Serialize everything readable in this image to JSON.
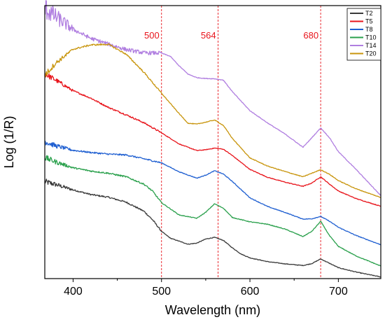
{
  "chart_data": {
    "type": "line",
    "xlabel": "Wavelength (nm)",
    "ylabel": "Log (1/R)",
    "xlim": [
      368,
      748
    ],
    "ylim": [
      0,
      100
    ],
    "x_ticks": [
      "400",
      "500",
      "600",
      "700"
    ],
    "y_ticks_shown": false,
    "grid": false,
    "legend_position": "top-right",
    "reference_lines": [
      {
        "x": 500,
        "label": "500",
        "color": "#e8141b",
        "style": "dashed"
      },
      {
        "x": 564,
        "label": "564",
        "color": "#e8141b",
        "style": "dashed"
      },
      {
        "x": 680,
        "label": "680",
        "color": "#e8141b",
        "style": "dashed"
      }
    ],
    "series": [
      {
        "name": "T2",
        "color": "#3a3a3a",
        "x": [
          368,
          380,
          400,
          420,
          440,
          460,
          480,
          490,
          500,
          510,
          520,
          530,
          540,
          550,
          560,
          570,
          580,
          590,
          600,
          620,
          640,
          660,
          670,
          680,
          690,
          700,
          720,
          748
        ],
        "y": [
          35.5,
          34.5,
          32.5,
          30.8,
          29.8,
          28.0,
          24.7,
          21.5,
          17.3,
          14.8,
          13.7,
          12.6,
          13.0,
          14.5,
          15.1,
          14.0,
          11.3,
          9.0,
          7.6,
          6.2,
          5.4,
          4.8,
          5.5,
          7.2,
          5.6,
          4.0,
          2.4,
          0.6
        ]
      },
      {
        "name": "T5",
        "color": "#e8141b",
        "x": [
          368,
          380,
          400,
          420,
          440,
          460,
          480,
          500,
          520,
          540,
          550,
          560,
          570,
          580,
          600,
          620,
          640,
          660,
          670,
          680,
          690,
          700,
          720,
          748
        ],
        "y": [
          75.0,
          72.8,
          68.8,
          66.1,
          62.7,
          60.0,
          57.1,
          53.4,
          49.3,
          46.9,
          47.2,
          47.8,
          47.4,
          45.1,
          40.0,
          37.1,
          35.3,
          33.8,
          35.0,
          37.3,
          34.6,
          32.1,
          29.3,
          26.5
        ]
      },
      {
        "name": "T8",
        "color": "#1f5fd1",
        "x": [
          368,
          380,
          400,
          420,
          440,
          460,
          480,
          500,
          520,
          540,
          550,
          560,
          570,
          580,
          600,
          620,
          640,
          660,
          670,
          680,
          690,
          700,
          720,
          748
        ],
        "y": [
          50.2,
          48.7,
          47.0,
          46.2,
          45.6,
          45.3,
          43.9,
          42.4,
          39.1,
          36.8,
          37.9,
          39.5,
          38.3,
          35.6,
          29.6,
          26.4,
          24.2,
          21.8,
          21.9,
          22.8,
          21.0,
          18.8,
          15.8,
          12.4
        ]
      },
      {
        "name": "T10",
        "color": "#2aa04c",
        "x": [
          368,
          380,
          400,
          420,
          440,
          460,
          480,
          490,
          500,
          520,
          540,
          550,
          560,
          570,
          580,
          600,
          620,
          640,
          660,
          670,
          680,
          690,
          700,
          720,
          748
        ],
        "y": [
          44.3,
          42.8,
          40.6,
          39.4,
          38.6,
          37.3,
          34.6,
          32.0,
          27.8,
          23.3,
          22.1,
          24.3,
          27.4,
          25.8,
          22.4,
          20.8,
          19.9,
          18.1,
          15.4,
          17.3,
          21.0,
          15.7,
          11.8,
          8.3,
          4.6
        ]
      },
      {
        "name": "T14",
        "color": "#b07ee0",
        "x": [
          368,
          380,
          400,
          420,
          440,
          460,
          480,
          500,
          510,
          520,
          530,
          540,
          550,
          560,
          570,
          580,
          600,
          620,
          640,
          660,
          670,
          680,
          690,
          700,
          720,
          748
        ],
        "y": [
          99.0,
          96.0,
          91.3,
          88.0,
          85.9,
          83.9,
          82.7,
          82.6,
          81.4,
          77.9,
          74.9,
          73.6,
          73.3,
          73.2,
          72.7,
          68.5,
          61.5,
          57.0,
          52.9,
          48.1,
          51.6,
          55.2,
          51.6,
          46.5,
          40.0,
          30.4
        ]
      },
      {
        "name": "T20",
        "color": "#c8950d",
        "x": [
          368,
          380,
          400,
          420,
          440,
          460,
          480,
          500,
          520,
          530,
          540,
          550,
          560,
          570,
          580,
          600,
          620,
          640,
          660,
          670,
          680,
          690,
          700,
          720,
          748
        ],
        "y": [
          74.5,
          78.8,
          84.0,
          85.6,
          85.8,
          82.2,
          75.6,
          67.9,
          60.4,
          56.9,
          56.6,
          57.3,
          58.1,
          56.1,
          51.4,
          44.2,
          41.2,
          39.2,
          37.3,
          38.6,
          39.9,
          38.2,
          35.9,
          32.9,
          29.7
        ]
      }
    ]
  }
}
